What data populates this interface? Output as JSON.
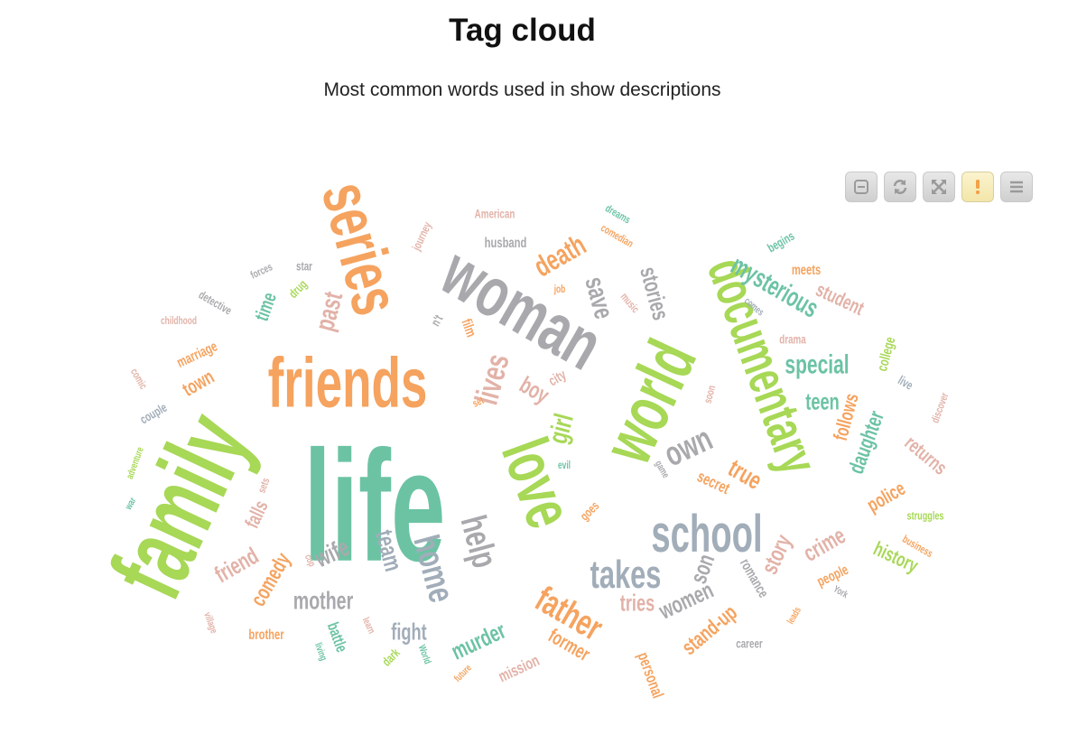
{
  "header": {
    "title": "Tag cloud",
    "subtitle": "Most common words used in show descriptions"
  },
  "toolbar": {
    "buttons": [
      {
        "name": "minimize-button",
        "icon": "minimize-icon"
      },
      {
        "name": "refresh-button",
        "icon": "refresh-icon"
      },
      {
        "name": "fullscreen-button",
        "icon": "expand-icon"
      },
      {
        "name": "alert-button",
        "icon": "alert-icon",
        "active": true
      },
      {
        "name": "menu-button",
        "icon": "menu-icon"
      }
    ]
  },
  "colors": {
    "teal": "#6cc3a3",
    "green": "#a7d856",
    "orange": "#f5a35f",
    "grey": "#a9a9ad",
    "pink": "#e2b2a8",
    "slate": "#a1adb9"
  },
  "chart_data": {
    "type": "wordcloud",
    "title": "Tag cloud",
    "subtitle": "Most common words used in show descriptions",
    "words": [
      {
        "text": "life",
        "weight": 100,
        "color": "#6cc3a3"
      },
      {
        "text": "family",
        "weight": 72,
        "color": "#a7d856"
      },
      {
        "text": "woman",
        "weight": 62,
        "color": "#a9a9ad"
      },
      {
        "text": "friends",
        "weight": 60,
        "color": "#f5a35f"
      },
      {
        "text": "series",
        "weight": 58,
        "color": "#f5a35f"
      },
      {
        "text": "world",
        "weight": 56,
        "color": "#a7d856"
      },
      {
        "text": "documentary",
        "weight": 52,
        "color": "#a7d856"
      },
      {
        "text": "love",
        "weight": 50,
        "color": "#a7d856"
      },
      {
        "text": "school",
        "weight": 44,
        "color": "#a1adb9"
      },
      {
        "text": "lives",
        "weight": 34,
        "color": "#e2b2a8"
      },
      {
        "text": "help",
        "weight": 32,
        "color": "#a9a9ad"
      },
      {
        "text": "home",
        "weight": 32,
        "color": "#a1adb9"
      },
      {
        "text": "father",
        "weight": 32,
        "color": "#f5a35f"
      },
      {
        "text": "takes",
        "weight": 32,
        "color": "#a1adb9"
      },
      {
        "text": "own",
        "weight": 30,
        "color": "#a9a9ad"
      },
      {
        "text": "death",
        "weight": 28,
        "color": "#f5a35f"
      },
      {
        "text": "save",
        "weight": 26,
        "color": "#a9a9ad"
      },
      {
        "text": "past",
        "weight": 26,
        "color": "#e2b2a8"
      },
      {
        "text": "mysterious",
        "weight": 26,
        "color": "#6cc3a3"
      },
      {
        "text": "special",
        "weight": 24,
        "color": "#6cc3a3"
      },
      {
        "text": "girl",
        "weight": 24,
        "color": "#a7d856"
      },
      {
        "text": "true",
        "weight": 24,
        "color": "#f5a35f"
      },
      {
        "text": "wife",
        "weight": 24,
        "color": "#a9a9ad"
      },
      {
        "text": "team",
        "weight": 24,
        "color": "#a1adb9"
      },
      {
        "text": "mother",
        "weight": 24,
        "color": "#a9a9ad"
      },
      {
        "text": "comedy",
        "weight": 22,
        "color": "#f5a35f"
      },
      {
        "text": "stories",
        "weight": 22,
        "color": "#a9a9ad"
      },
      {
        "text": "murder",
        "weight": 22,
        "color": "#6cc3a3"
      },
      {
        "text": "boy",
        "weight": 22,
        "color": "#e2b2a8"
      },
      {
        "text": "teen",
        "weight": 22,
        "color": "#6cc3a3"
      },
      {
        "text": "son",
        "weight": 22,
        "color": "#a9a9ad"
      },
      {
        "text": "friend",
        "weight": 22,
        "color": "#e2b2a8"
      },
      {
        "text": "tries",
        "weight": 22,
        "color": "#e2b2a8"
      },
      {
        "text": "daughter",
        "weight": 22,
        "color": "#6cc3a3"
      },
      {
        "text": "women",
        "weight": 22,
        "color": "#a9a9ad"
      },
      {
        "text": "crime",
        "weight": 22,
        "color": "#e2b2a8"
      },
      {
        "text": "story",
        "weight": 22,
        "color": "#e2b2a8"
      },
      {
        "text": "fight",
        "weight": 22,
        "color": "#a1adb9"
      },
      {
        "text": "stand-up",
        "weight": 22,
        "color": "#f5a35f"
      },
      {
        "text": "returns",
        "weight": 20,
        "color": "#e2b2a8"
      },
      {
        "text": "student",
        "weight": 20,
        "color": "#e2b2a8"
      },
      {
        "text": "police",
        "weight": 20,
        "color": "#f5a35f"
      },
      {
        "text": "follows",
        "weight": 20,
        "color": "#f5a35f"
      },
      {
        "text": "history",
        "weight": 20,
        "color": "#a7d856"
      },
      {
        "text": "town",
        "weight": 20,
        "color": "#f5a35f"
      },
      {
        "text": "falls",
        "weight": 20,
        "color": "#e2b2a8"
      },
      {
        "text": "time",
        "weight": 20,
        "color": "#6cc3a3"
      },
      {
        "text": "former",
        "weight": 20,
        "color": "#f5a35f"
      },
      {
        "text": "secret",
        "weight": 18,
        "color": "#f5a35f"
      },
      {
        "text": "battle",
        "weight": 18,
        "color": "#6cc3a3"
      },
      {
        "text": "mission",
        "weight": 18,
        "color": "#e2b2a8"
      },
      {
        "text": "personal",
        "weight": 18,
        "color": "#f5a35f"
      },
      {
        "text": "college",
        "weight": 16,
        "color": "#a7d856"
      },
      {
        "text": "meets",
        "weight": 16,
        "color": "#f5a35f"
      },
      {
        "text": "husband",
        "weight": 16,
        "color": "#a9a9ad"
      },
      {
        "text": "brother",
        "weight": 16,
        "color": "#f5a35f"
      },
      {
        "text": "marriage",
        "weight": 16,
        "color": "#f5a35f"
      },
      {
        "text": "romance",
        "weight": 16,
        "color": "#a9a9ad"
      },
      {
        "text": "people",
        "weight": 16,
        "color": "#f5a35f"
      },
      {
        "text": "city",
        "weight": 16,
        "color": "#e2b2a8"
      },
      {
        "text": "film",
        "weight": 16,
        "color": "#f5a35f"
      },
      {
        "text": "drama",
        "weight": 14,
        "color": "#e2b2a8"
      },
      {
        "text": "American",
        "weight": 14,
        "color": "#e2b2a8"
      },
      {
        "text": "couple",
        "weight": 14,
        "color": "#a1adb9"
      },
      {
        "text": "drug",
        "weight": 14,
        "color": "#a7d856"
      },
      {
        "text": "goes",
        "weight": 14,
        "color": "#f5a35f"
      },
      {
        "text": "dark",
        "weight": 14,
        "color": "#a7d856"
      },
      {
        "text": "career",
        "weight": 14,
        "color": "#a9a9ad"
      },
      {
        "text": "begins",
        "weight": 14,
        "color": "#6cc3a3"
      },
      {
        "text": "struggles",
        "weight": 13,
        "color": "#a7d856"
      },
      {
        "text": "live",
        "weight": 14,
        "color": "#a1adb9"
      },
      {
        "text": "star",
        "weight": 14,
        "color": "#a9a9ad"
      },
      {
        "text": "detective",
        "weight": 13,
        "color": "#a9a9ad"
      },
      {
        "text": "journey",
        "weight": 13,
        "color": "#e2b2a8"
      },
      {
        "text": "childhood",
        "weight": 12,
        "color": "#e2b2a8"
      },
      {
        "text": "comic",
        "weight": 12,
        "color": "#e2b2a8"
      },
      {
        "text": "discover",
        "weight": 12,
        "color": "#e2b2a8"
      },
      {
        "text": "business",
        "weight": 12,
        "color": "#f5a35f"
      },
      {
        "text": "comedian",
        "weight": 12,
        "color": "#f5a35f"
      },
      {
        "text": "dreams",
        "weight": 12,
        "color": "#6cc3a3"
      },
      {
        "text": "forces",
        "weight": 12,
        "color": "#a9a9ad"
      },
      {
        "text": "comes",
        "weight": 11,
        "color": "#a1adb9"
      },
      {
        "text": "soon",
        "weight": 12,
        "color": "#e2b2a8"
      },
      {
        "text": "sets",
        "weight": 12,
        "color": "#e2b2a8"
      },
      {
        "text": "set",
        "weight": 12,
        "color": "#f5a35f"
      },
      {
        "text": "n't",
        "weight": 14,
        "color": "#a9a9ad"
      },
      {
        "text": "evil",
        "weight": 12,
        "color": "#6cc3a3"
      },
      {
        "text": "job",
        "weight": 12,
        "color": "#f5a35f"
      },
      {
        "text": "music",
        "weight": 12,
        "color": "#e2b2a8"
      },
      {
        "text": "game",
        "weight": 11,
        "color": "#a9a9ad"
      },
      {
        "text": "cop",
        "weight": 11,
        "color": "#e2b2a8"
      },
      {
        "text": "learn",
        "weight": 11,
        "color": "#e2b2a8"
      },
      {
        "text": "living",
        "weight": 11,
        "color": "#6cc3a3"
      },
      {
        "text": "World",
        "weight": 11,
        "color": "#6cc3a3"
      },
      {
        "text": "future",
        "weight": 11,
        "color": "#f5a35f"
      },
      {
        "text": "leads",
        "weight": 11,
        "color": "#f5a35f"
      },
      {
        "text": "York",
        "weight": 11,
        "color": "#a9a9ad"
      },
      {
        "text": "village",
        "weight": 11,
        "color": "#e2b2a8"
      },
      {
        "text": "adventure",
        "weight": 11,
        "color": "#a7d856"
      },
      {
        "text": "war",
        "weight": 11,
        "color": "#6cc3a3"
      }
    ]
  }
}
